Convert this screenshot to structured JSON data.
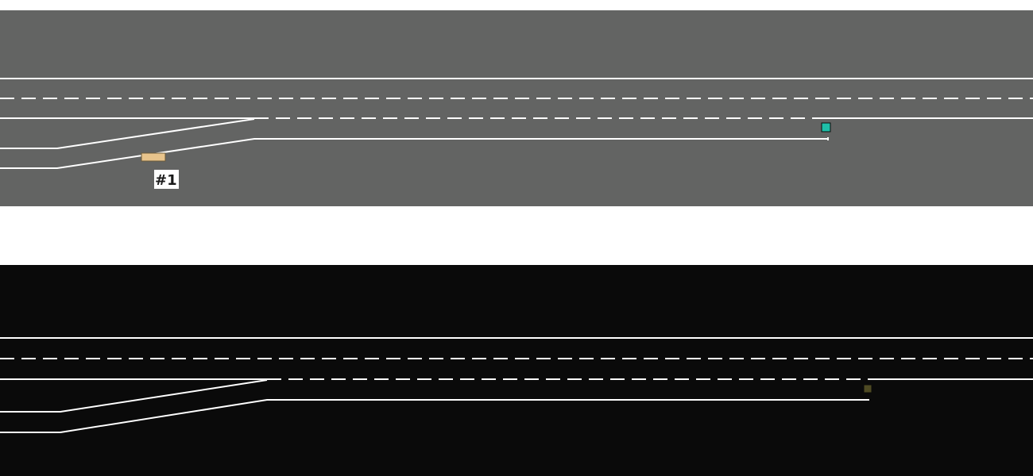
{
  "panels": [
    {
      "id": "simulation-view",
      "background": "#636463",
      "lane_line_color": "#ffffff",
      "vehicles": [
        {
          "label": "#1",
          "color": "#e8c48c",
          "label_bg": "#ffffff",
          "label_color": "#1a1a1a"
        }
      ],
      "markers": [
        {
          "name": "goal-marker",
          "color": "#1ebfa8",
          "border": "#0b0b0b"
        }
      ]
    },
    {
      "id": "observation-view",
      "background": "#0a0a0a",
      "lane_line_color": "#ffffff",
      "vehicles": [],
      "markers": [
        {
          "name": "goal-marker",
          "color": "#4e4a23",
          "border": "#0a0a0a"
        }
      ]
    }
  ]
}
